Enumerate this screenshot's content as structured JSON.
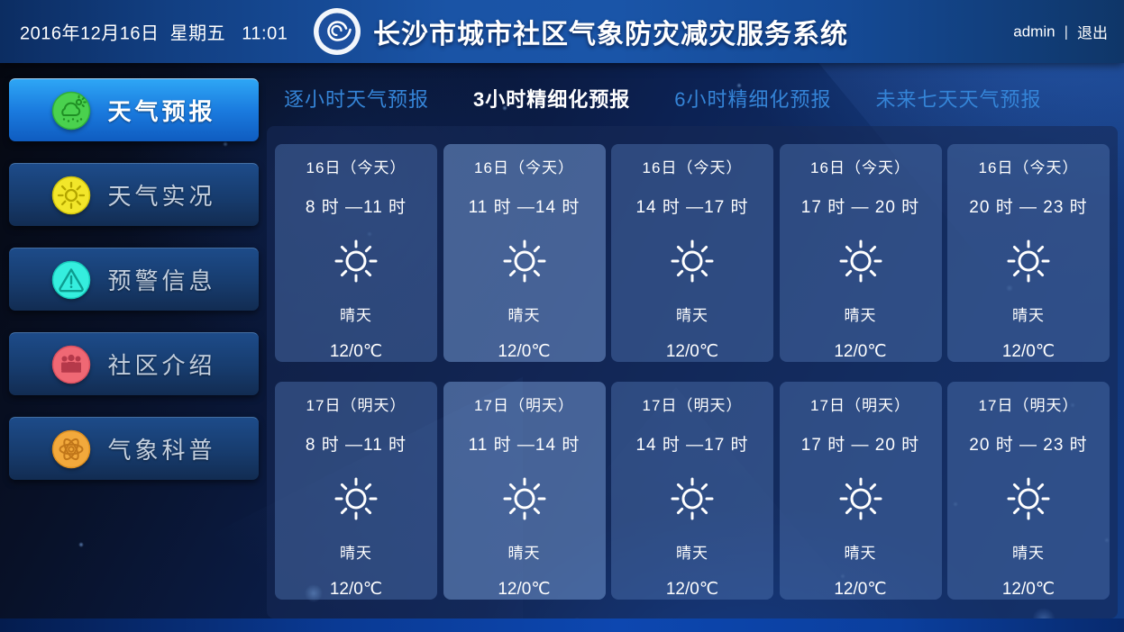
{
  "header": {
    "datetime": "2016年12月16日  星期五   11:01",
    "title": "长沙市城市社区气象防灾减灾服务系统",
    "logo": "cma-logo-icon",
    "username": "admin",
    "separator": "|",
    "logout_label": "退出"
  },
  "sidebar": {
    "items": [
      {
        "key": "weather-forecast",
        "label": "天气预报",
        "icon": "weather-forecast-icon",
        "icon_color": "#4ad14e",
        "active": true
      },
      {
        "key": "weather-live",
        "label": "天气实况",
        "icon": "live-weather-icon",
        "icon_color": "#f2e62a",
        "active": false
      },
      {
        "key": "alert-info",
        "label": "预警信息",
        "icon": "alert-icon",
        "icon_color": "#35eede",
        "active": false
      },
      {
        "key": "community-intro",
        "label": "社区介绍",
        "icon": "community-icon",
        "icon_color": "#ef6874",
        "active": false
      },
      {
        "key": "weather-science",
        "label": "气象科普",
        "icon": "science-icon",
        "icon_color": "#f2a93c",
        "active": false
      }
    ]
  },
  "tabs": [
    {
      "key": "hourly",
      "label": "逐小时天气预报",
      "active": false
    },
    {
      "key": "3hour",
      "label": "3小时精细化预报",
      "active": true
    },
    {
      "key": "6hour",
      "label": "6小时精细化预报",
      "active": false
    },
    {
      "key": "7day",
      "label": "未来七天天气预报",
      "active": false
    }
  ],
  "forecast": {
    "rows": [
      {
        "row_name": "today",
        "cards": [
          {
            "date": "16日（今天）",
            "time": "8 时 —11 时",
            "icon": "sunny-icon",
            "condition": "晴天",
            "temp": "12/0℃",
            "highlight": false
          },
          {
            "date": "16日（今天）",
            "time": "11 时 —14 时",
            "icon": "sunny-icon",
            "condition": "晴天",
            "temp": "12/0℃",
            "highlight": true
          },
          {
            "date": "16日（今天）",
            "time": "14 时 —17 时",
            "icon": "sunny-icon",
            "condition": "晴天",
            "temp": "12/0℃",
            "highlight": false
          },
          {
            "date": "16日（今天）",
            "time": "17 时 — 20 时",
            "icon": "sunny-icon",
            "condition": "晴天",
            "temp": "12/0℃",
            "highlight": false
          },
          {
            "date": "16日（今天）",
            "time": "20 时 — 23 时",
            "icon": "sunny-icon",
            "condition": "晴天",
            "temp": "12/0℃",
            "highlight": false
          }
        ]
      },
      {
        "row_name": "tomorrow",
        "cards": [
          {
            "date": "17日（明天）",
            "time": "8 时 —11 时",
            "icon": "sunny-icon",
            "condition": "晴天",
            "temp": "12/0℃",
            "highlight": false
          },
          {
            "date": "17日（明天）",
            "time": "11 时 —14 时",
            "icon": "sunny-icon",
            "condition": "晴天",
            "temp": "12/0℃",
            "highlight": true
          },
          {
            "date": "17日（明天）",
            "time": "14 时 —17 时",
            "icon": "sunny-icon",
            "condition": "晴天",
            "temp": "12/0℃",
            "highlight": false
          },
          {
            "date": "17日（明天）",
            "time": "17 时 — 20 时",
            "icon": "sunny-icon",
            "condition": "晴天",
            "temp": "12/0℃",
            "highlight": false
          },
          {
            "date": "17日（明天）",
            "time": "20 时 — 23 时",
            "icon": "sunny-icon",
            "condition": "晴天",
            "temp": "12/0℃",
            "highlight": false
          }
        ]
      }
    ]
  },
  "colors": {
    "header_blue": "#1a54a6",
    "active_button_top": "#2ea6f5",
    "active_button_bottom": "#0f5cc0",
    "inactive_button": "#173c6e",
    "tab_inactive_text": "#3585d8",
    "tab_active_text": "#ffffff",
    "panel_bg": "#172a56",
    "card_bg": "#2f4a7d",
    "card_highlight_bg": "#48689c",
    "bottom_band": "#0d47b0",
    "icon_green": "#4ad14e",
    "icon_yellow": "#f2e62a",
    "icon_cyan": "#35eede",
    "icon_red": "#ef6874",
    "icon_orange": "#f2a93c"
  }
}
